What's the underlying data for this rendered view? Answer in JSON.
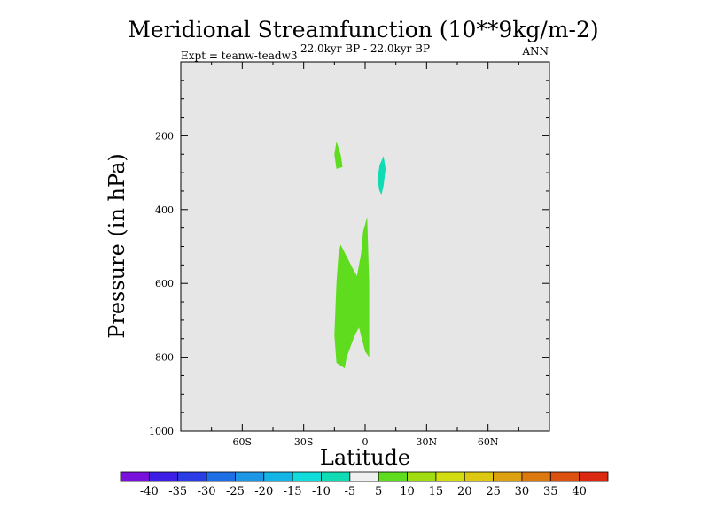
{
  "chart_data": {
    "type": "contour",
    "title": "Meridional Streamfunction (10**9kg/m-2)",
    "subtitle_center": "22.0kyr BP - 22.0kyr BP",
    "subtitle_left": "Expt = teanw-teadw3",
    "subtitle_right": "ANN",
    "xlabel": "Latitude",
    "ylabel": "Pressure (in hPa)",
    "xlim": [
      -90,
      90
    ],
    "ylim": [
      1000,
      0
    ],
    "x_ticks": [
      {
        "value": -60,
        "label": "60S"
      },
      {
        "value": -30,
        "label": "30S"
      },
      {
        "value": 0,
        "label": "0"
      },
      {
        "value": 30,
        "label": "30N"
      },
      {
        "value": 60,
        "label": "60N"
      }
    ],
    "y_ticks": [
      {
        "value": 200,
        "label": "200"
      },
      {
        "value": 400,
        "label": "400"
      },
      {
        "value": 600,
        "label": "600"
      },
      {
        "value": 800,
        "label": "800"
      },
      {
        "value": 1000,
        "label": "1000"
      }
    ],
    "background_color": "#e6e6e6",
    "regions": [
      {
        "name": "positive-5-10-upper",
        "bin": "5 to 10",
        "color": "#5fdc1e",
        "points": [
          [
            -14,
            215
          ],
          [
            -12,
            250
          ],
          [
            -11,
            285
          ],
          [
            -14,
            290
          ],
          [
            -15,
            250
          ]
        ]
      },
      {
        "name": "negative-10-5-upper",
        "bin": "-10 to -5",
        "color": "#10dcb4",
        "points": [
          [
            9,
            255
          ],
          [
            10,
            290
          ],
          [
            9,
            335
          ],
          [
            8,
            360
          ],
          [
            7,
            350
          ],
          [
            6,
            320
          ],
          [
            7,
            280
          ]
        ]
      },
      {
        "name": "positive-5-10-lower",
        "bin": "5 to 10",
        "color": "#5fdc1e",
        "points": [
          [
            1,
            420
          ],
          [
            2,
            600
          ],
          [
            2,
            800
          ],
          [
            0,
            785
          ],
          [
            -3,
            720
          ],
          [
            -5,
            740
          ],
          [
            -9,
            800
          ],
          [
            -10,
            830
          ],
          [
            -14,
            815
          ],
          [
            -15,
            740
          ],
          [
            -14,
            600
          ],
          [
            -13,
            520
          ],
          [
            -12,
            495
          ],
          [
            -6,
            560
          ],
          [
            -4,
            580
          ],
          [
            -2,
            520
          ],
          [
            -1,
            460
          ]
        ]
      }
    ],
    "colorbar": {
      "labels": [
        "-40",
        "-35",
        "-30",
        "-25",
        "-20",
        "-15",
        "-10",
        "-5",
        "5",
        "10",
        "15",
        "20",
        "25",
        "30",
        "35",
        "40"
      ],
      "colors": [
        "#7a10dc",
        "#3c1ee6",
        "#2a3ce6",
        "#1e6ee6",
        "#1e96e6",
        "#14b4e6",
        "#10dcdc",
        "#10dcb4",
        "#f0f0f0",
        "#5fdc1e",
        "#a0dc10",
        "#d2dc10",
        "#dcc810",
        "#dca010",
        "#dc7810",
        "#dc5010",
        "#dc2810"
      ]
    }
  }
}
